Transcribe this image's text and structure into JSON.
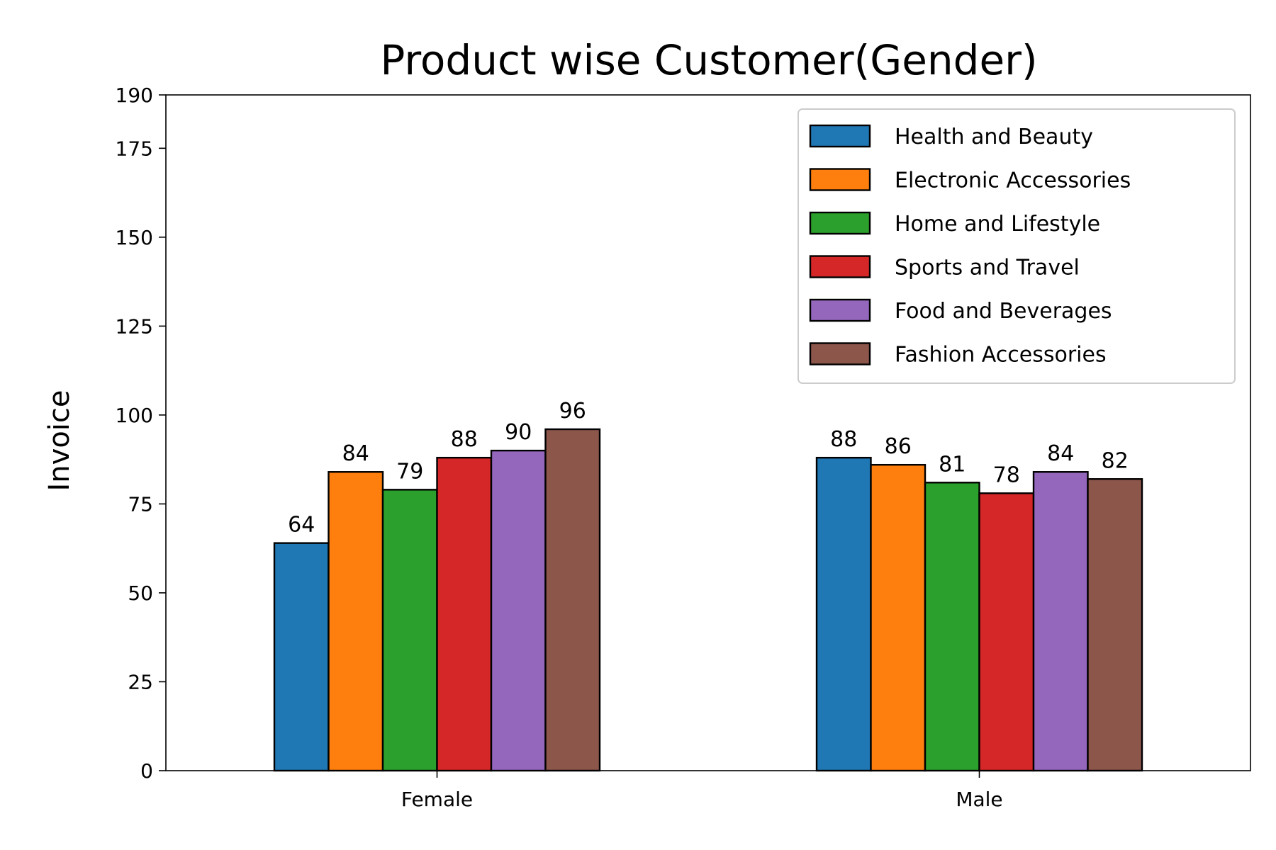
{
  "chart_data": {
    "type": "bar",
    "title": "Product wise Customer(Gender)",
    "xlabel": "",
    "ylabel": "Invoice",
    "ylim": [
      0,
      190
    ],
    "yticks": [
      0,
      25,
      50,
      75,
      100,
      125,
      150,
      175,
      190
    ],
    "categories": [
      "Female",
      "Male"
    ],
    "grid": false,
    "legend_position": "top-right",
    "series": [
      {
        "name": "Health and Beauty",
        "color": "#1f77b4",
        "values": [
          64,
          88
        ]
      },
      {
        "name": "Electronic Accessories",
        "color": "#ff7f0e",
        "values": [
          84,
          86
        ]
      },
      {
        "name": "Home and Lifestyle",
        "color": "#2ca02c",
        "values": [
          79,
          81
        ]
      },
      {
        "name": "Sports and Travel",
        "color": "#d62728",
        "values": [
          88,
          78
        ]
      },
      {
        "name": "Food and Beverages",
        "color": "#9467bd",
        "values": [
          90,
          84
        ]
      },
      {
        "name": "Fashion Accessories",
        "color": "#8c564b",
        "values": [
          96,
          82
        ]
      }
    ]
  }
}
